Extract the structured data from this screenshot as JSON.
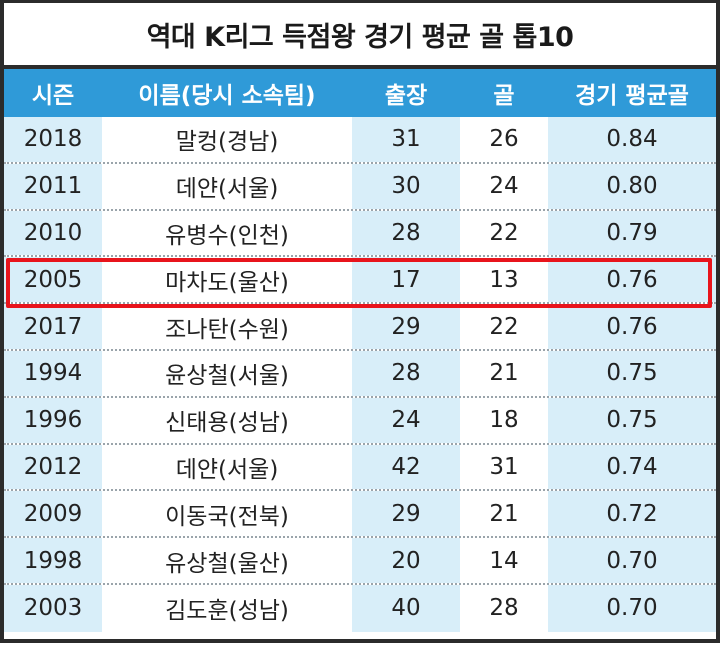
{
  "title": "역대 K리그 득점왕 경기 평균 골 톱10",
  "columns": [
    "시즌",
    "이름(당시 소속팀)",
    "출장",
    "골",
    "경기 평균골"
  ],
  "rows": [
    {
      "season": "2018",
      "name": "말컹(경남)",
      "apps": "31",
      "goals": "26",
      "avg": "0.84"
    },
    {
      "season": "2011",
      "name": "데얀(서울)",
      "apps": "30",
      "goals": "24",
      "avg": "0.80"
    },
    {
      "season": "2010",
      "name": "유병수(인천)",
      "apps": "28",
      "goals": "22",
      "avg": "0.79"
    },
    {
      "season": "2005",
      "name": "마차도(울산)",
      "apps": "17",
      "goals": "13",
      "avg": "0.76"
    },
    {
      "season": "2017",
      "name": "조나탄(수원)",
      "apps": "29",
      "goals": "22",
      "avg": "0.76"
    },
    {
      "season": "1994",
      "name": "윤상철(서울)",
      "apps": "28",
      "goals": "21",
      "avg": "0.75"
    },
    {
      "season": "1996",
      "name": "신태용(성남)",
      "apps": "24",
      "goals": "18",
      "avg": "0.75"
    },
    {
      "season": "2012",
      "name": "데얀(서울)",
      "apps": "42",
      "goals": "31",
      "avg": "0.74"
    },
    {
      "season": "2009",
      "name": "이동국(전북)",
      "apps": "29",
      "goals": "21",
      "avg": "0.72"
    },
    {
      "season": "1998",
      "name": "유상철(울산)",
      "apps": "20",
      "goals": "14",
      "avg": "0.70"
    },
    {
      "season": "2003",
      "name": "김도훈(성남)",
      "apps": "40",
      "goals": "28",
      "avg": "0.70"
    }
  ],
  "highlighted_row": "2005",
  "colors": {
    "header_bg": "#2f9ad8",
    "shade": "#d8eef9",
    "highlight": "#e8141c"
  }
}
